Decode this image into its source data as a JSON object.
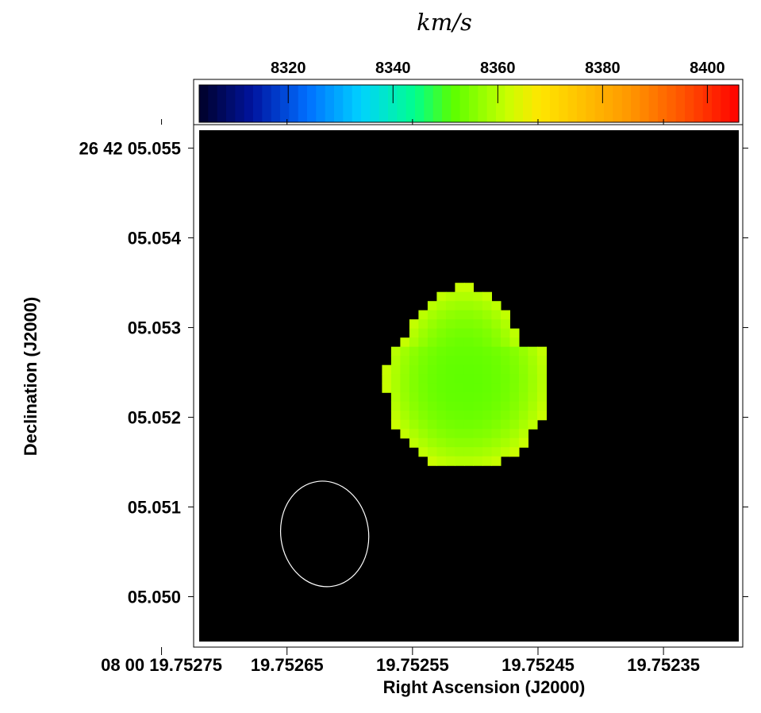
{
  "chart_data": {
    "type": "heatmap",
    "title": "",
    "colorbar": {
      "label": "km/s",
      "range": [
        8303,
        8406
      ],
      "ticks": [
        8320,
        8340,
        8360,
        8380,
        8400
      ],
      "tick_labels": [
        "8320",
        "8340",
        "8360",
        "8380",
        "8400"
      ],
      "colormap": "rainbow (dark navy → blue → cyan → green → yellow → orange → red)"
    },
    "xlabel": "Right Ascension (J2000)",
    "ylabel": "Declination (J2000)",
    "x_ticks": [
      {
        "value": 19.75275,
        "label": "08 00 19.75275"
      },
      {
        "value": 19.75265,
        "label": "19.75265"
      },
      {
        "value": 19.75255,
        "label": "19.75255"
      },
      {
        "value": 19.75245,
        "label": "19.75245"
      },
      {
        "value": 19.75235,
        "label": "19.75235"
      }
    ],
    "y_ticks": [
      {
        "value": 5.055,
        "label": "26 42 05.055"
      },
      {
        "value": 5.054,
        "label": "05.054"
      },
      {
        "value": 5.053,
        "label": "05.053"
      },
      {
        "value": 5.052,
        "label": "05.052"
      },
      {
        "value": 5.051,
        "label": "05.051"
      },
      {
        "value": 5.05,
        "label": "05.050"
      }
    ],
    "xlim": [
      19.75272,
      19.75229
    ],
    "ylim": [
      5.0495,
      5.0552
    ],
    "background": "#000000",
    "source": {
      "center": [
        19.752512,
        5.05245
      ],
      "velocity_range_kms": [
        8352,
        8362
      ],
      "mean_velocity_kms": 8357
    },
    "beam": {
      "center": [
        19.75262,
        5.0507
      ],
      "major_axis_ra_span": 7e-05,
      "minor_axis_dec_span": 0.00118
    },
    "grid": false
  }
}
